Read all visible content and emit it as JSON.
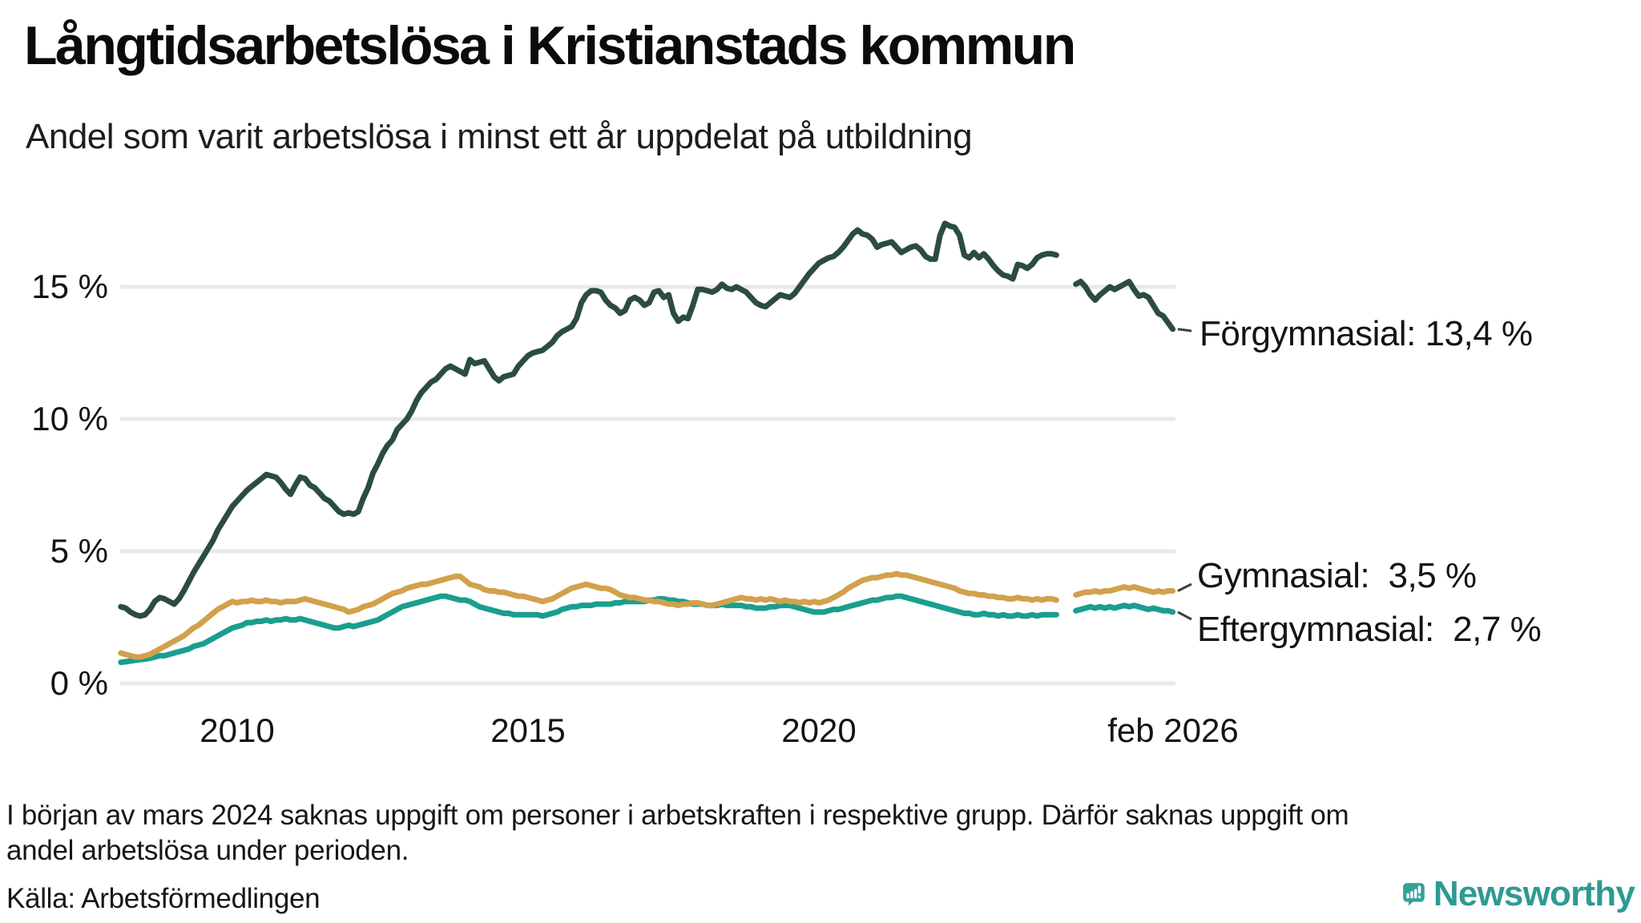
{
  "title": "Långtidsarbetslösa i Kristianstads kommun",
  "subtitle": "Andel som varit arbetslösa i minst ett år uppdelat på utbildning",
  "y_axis": {
    "ticks": [
      {
        "label": "15 %",
        "value": 15
      },
      {
        "label": "10 %",
        "value": 10
      },
      {
        "label": "5 %",
        "value": 5
      },
      {
        "label": "0 %",
        "value": 0
      }
    ]
  },
  "x_axis": {
    "ticks": [
      {
        "label": "2010",
        "year": 2010.0
      },
      {
        "label": "2015",
        "year": 2015.0
      },
      {
        "label": "2020",
        "year": 2020.0
      },
      {
        "label": "feb 2026",
        "year": 2026.083
      }
    ]
  },
  "footnote_line1": "I början av mars 2024 saknas uppgift om personer i arbetskraften i respektive grupp. Därför saknas uppgift om",
  "footnote_line2": "andel arbetslösa under perioden.",
  "source": "Källa: Arbetsförmedlingen",
  "brand": {
    "name": "Newsworthy",
    "color": "#2e9a92",
    "icon_color": "#35a29a"
  },
  "chart_data": {
    "type": "line",
    "frequency": "monthly",
    "start_month": "2008-01",
    "end_month": "2026-02",
    "missing_months": [
      "2024-03",
      "2024-04",
      "2024-05"
    ],
    "ylim": [
      0,
      18
    ],
    "grid": true,
    "gridline_color": "#e9e9ec",
    "series": [
      {
        "name": "Förgymnasial",
        "end_label": "Förgymnasial: 13,4 %",
        "end_value": 13.4,
        "color": "#2b4b44",
        "values": [
          2.9,
          2.85,
          2.7,
          2.6,
          2.55,
          2.6,
          2.8,
          3.1,
          3.25,
          3.2,
          3.1,
          3.0,
          3.2,
          3.5,
          3.85,
          4.2,
          4.5,
          4.8,
          5.1,
          5.4,
          5.8,
          6.1,
          6.4,
          6.7,
          6.9,
          7.1,
          7.3,
          7.45,
          7.6,
          7.75,
          7.9,
          7.85,
          7.8,
          7.6,
          7.35,
          7.15,
          7.5,
          7.8,
          7.75,
          7.5,
          7.4,
          7.2,
          7.0,
          6.9,
          6.7,
          6.5,
          6.4,
          6.45,
          6.4,
          6.5,
          7.0,
          7.4,
          7.95,
          8.3,
          8.7,
          9.0,
          9.2,
          9.6,
          9.8,
          10.0,
          10.3,
          10.7,
          11.0,
          11.2,
          11.4,
          11.5,
          11.7,
          11.9,
          12.0,
          11.9,
          11.8,
          11.7,
          12.25,
          12.1,
          12.15,
          12.2,
          11.9,
          11.6,
          11.45,
          11.6,
          11.65,
          11.7,
          12.0,
          12.2,
          12.4,
          12.5,
          12.55,
          12.6,
          12.75,
          12.9,
          13.15,
          13.3,
          13.4,
          13.5,
          13.8,
          14.4,
          14.7,
          14.85,
          14.85,
          14.8,
          14.5,
          14.3,
          14.2,
          14.0,
          14.1,
          14.5,
          14.6,
          14.5,
          14.3,
          14.4,
          14.8,
          14.85,
          14.6,
          14.7,
          14.0,
          13.7,
          13.85,
          13.8,
          14.3,
          14.9,
          14.9,
          14.85,
          14.8,
          14.9,
          15.1,
          14.95,
          14.9,
          15.0,
          14.9,
          14.8,
          14.6,
          14.4,
          14.3,
          14.25,
          14.4,
          14.55,
          14.7,
          14.65,
          14.6,
          14.75,
          15.0,
          15.25,
          15.5,
          15.7,
          15.9,
          16.0,
          16.1,
          16.15,
          16.3,
          16.5,
          16.75,
          17.0,
          17.15,
          17.0,
          16.95,
          16.8,
          16.5,
          16.6,
          16.65,
          16.7,
          16.5,
          16.3,
          16.4,
          16.5,
          16.55,
          16.4,
          16.15,
          16.05,
          16.05,
          16.95,
          17.4,
          17.3,
          17.25,
          16.95,
          16.2,
          16.1,
          16.3,
          16.1,
          16.25,
          16.05,
          15.8,
          15.6,
          15.45,
          15.4,
          15.3,
          15.85,
          15.8,
          15.7,
          15.85,
          16.1,
          16.2,
          16.25,
          16.25,
          16.2,
          null,
          null,
          null,
          15.1,
          15.2,
          15.0,
          14.7,
          14.5,
          14.7,
          14.85,
          15.0,
          14.9,
          15.0,
          15.1,
          15.2,
          14.9,
          14.65,
          14.7,
          14.6,
          14.3,
          14.0,
          13.9,
          13.65,
          13.4
        ]
      },
      {
        "name": "Gymnasial",
        "end_label": "Gymnasial:  3,5 %",
        "end_value": 3.5,
        "color": "#d2a14c",
        "values": [
          1.15,
          1.1,
          1.05,
          1.0,
          1.0,
          1.05,
          1.1,
          1.2,
          1.3,
          1.4,
          1.5,
          1.6,
          1.7,
          1.8,
          1.95,
          2.1,
          2.2,
          2.35,
          2.5,
          2.65,
          2.8,
          2.9,
          3.0,
          3.1,
          3.05,
          3.1,
          3.1,
          3.15,
          3.1,
          3.1,
          3.15,
          3.1,
          3.1,
          3.05,
          3.1,
          3.1,
          3.1,
          3.15,
          3.2,
          3.15,
          3.1,
          3.05,
          3.0,
          2.95,
          2.9,
          2.85,
          2.8,
          2.7,
          2.75,
          2.8,
          2.9,
          2.95,
          3.0,
          3.1,
          3.2,
          3.3,
          3.4,
          3.45,
          3.5,
          3.6,
          3.65,
          3.7,
          3.75,
          3.75,
          3.8,
          3.85,
          3.9,
          3.95,
          4.0,
          4.05,
          4.05,
          3.9,
          3.75,
          3.7,
          3.65,
          3.55,
          3.5,
          3.5,
          3.45,
          3.45,
          3.4,
          3.35,
          3.3,
          3.3,
          3.25,
          3.2,
          3.15,
          3.1,
          3.15,
          3.2,
          3.3,
          3.4,
          3.5,
          3.6,
          3.65,
          3.7,
          3.75,
          3.7,
          3.65,
          3.6,
          3.6,
          3.55,
          3.45,
          3.35,
          3.3,
          3.25,
          3.25,
          3.2,
          3.15,
          3.15,
          3.1,
          3.1,
          3.05,
          3.0,
          3.0,
          2.95,
          3.0,
          3.0,
          3.05,
          3.05,
          3.0,
          2.95,
          2.95,
          3.0,
          3.05,
          3.1,
          3.15,
          3.2,
          3.25,
          3.2,
          3.2,
          3.15,
          3.2,
          3.15,
          3.2,
          3.15,
          3.1,
          3.15,
          3.1,
          3.1,
          3.05,
          3.1,
          3.05,
          3.1,
          3.05,
          3.1,
          3.15,
          3.25,
          3.35,
          3.45,
          3.6,
          3.7,
          3.8,
          3.9,
          3.95,
          4.0,
          4.0,
          4.05,
          4.1,
          4.1,
          4.15,
          4.1,
          4.1,
          4.05,
          4.0,
          3.95,
          3.9,
          3.85,
          3.8,
          3.75,
          3.7,
          3.65,
          3.6,
          3.5,
          3.45,
          3.4,
          3.4,
          3.35,
          3.35,
          3.3,
          3.3,
          3.25,
          3.25,
          3.2,
          3.2,
          3.25,
          3.2,
          3.2,
          3.15,
          3.2,
          3.15,
          3.2,
          3.2,
          3.15,
          null,
          null,
          null,
          3.35,
          3.4,
          3.45,
          3.45,
          3.5,
          3.45,
          3.5,
          3.5,
          3.55,
          3.6,
          3.65,
          3.6,
          3.65,
          3.6,
          3.55,
          3.5,
          3.45,
          3.5,
          3.45,
          3.5,
          3.5
        ]
      },
      {
        "name": "Eftergymnasial",
        "end_label": "Eftergymnasial:  2,7 %",
        "end_value": 2.7,
        "color": "#1a9e8f",
        "values": [
          0.8,
          0.82,
          0.85,
          0.88,
          0.9,
          0.92,
          0.95,
          1.0,
          1.05,
          1.05,
          1.1,
          1.15,
          1.2,
          1.25,
          1.3,
          1.4,
          1.45,
          1.5,
          1.6,
          1.7,
          1.8,
          1.9,
          2.0,
          2.1,
          2.15,
          2.2,
          2.3,
          2.3,
          2.35,
          2.35,
          2.4,
          2.35,
          2.4,
          2.4,
          2.45,
          2.4,
          2.4,
          2.45,
          2.4,
          2.35,
          2.3,
          2.25,
          2.2,
          2.15,
          2.1,
          2.1,
          2.15,
          2.2,
          2.15,
          2.2,
          2.25,
          2.3,
          2.35,
          2.4,
          2.5,
          2.6,
          2.7,
          2.8,
          2.9,
          2.95,
          3.0,
          3.05,
          3.1,
          3.15,
          3.2,
          3.25,
          3.3,
          3.3,
          3.25,
          3.2,
          3.15,
          3.15,
          3.1,
          3.0,
          2.9,
          2.85,
          2.8,
          2.75,
          2.7,
          2.65,
          2.65,
          2.6,
          2.6,
          2.6,
          2.6,
          2.6,
          2.6,
          2.55,
          2.6,
          2.65,
          2.7,
          2.8,
          2.85,
          2.9,
          2.9,
          2.95,
          2.95,
          2.95,
          3.0,
          3.0,
          3.0,
          3.0,
          3.05,
          3.05,
          3.1,
          3.1,
          3.1,
          3.1,
          3.1,
          3.15,
          3.15,
          3.2,
          3.2,
          3.15,
          3.15,
          3.1,
          3.1,
          3.05,
          3.0,
          3.0,
          3.0,
          2.95,
          2.95,
          2.95,
          3.0,
          2.95,
          2.95,
          2.95,
          2.95,
          2.9,
          2.9,
          2.85,
          2.85,
          2.85,
          2.9,
          2.9,
          2.95,
          2.95,
          2.95,
          2.9,
          2.85,
          2.8,
          2.75,
          2.7,
          2.7,
          2.7,
          2.75,
          2.8,
          2.8,
          2.85,
          2.9,
          2.95,
          3.0,
          3.05,
          3.1,
          3.15,
          3.15,
          3.2,
          3.25,
          3.25,
          3.3,
          3.3,
          3.25,
          3.2,
          3.15,
          3.1,
          3.05,
          3.0,
          2.95,
          2.9,
          2.85,
          2.8,
          2.75,
          2.7,
          2.65,
          2.65,
          2.6,
          2.6,
          2.65,
          2.6,
          2.6,
          2.55,
          2.6,
          2.55,
          2.55,
          2.6,
          2.55,
          2.55,
          2.6,
          2.55,
          2.6,
          2.6,
          2.6,
          2.6,
          null,
          null,
          null,
          2.75,
          2.8,
          2.85,
          2.9,
          2.85,
          2.9,
          2.85,
          2.9,
          2.85,
          2.9,
          2.95,
          2.9,
          2.95,
          2.9,
          2.85,
          2.8,
          2.85,
          2.8,
          2.75,
          2.75,
          2.7
        ]
      }
    ]
  }
}
